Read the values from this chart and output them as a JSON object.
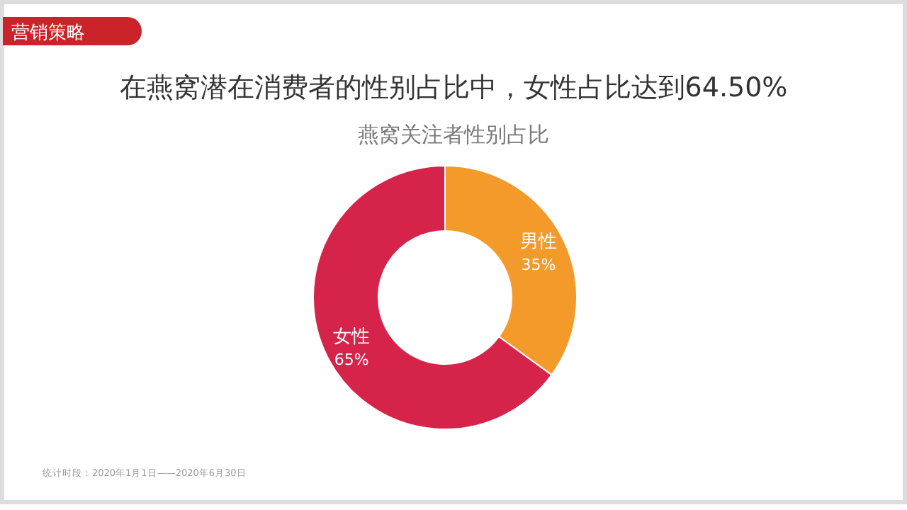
{
  "chart_data": {
    "type": "donut",
    "title": "在燕窝潜在消费者的性别占比中，女性占比达到64.50%",
    "subtitle": "燕窝关注者性别占比",
    "categories": [
      "男性",
      "女性"
    ],
    "values": [
      35,
      65
    ],
    "colors": [
      "#f39a2b",
      "#d6234a"
    ],
    "value_labels": [
      "35%",
      "65%"
    ],
    "annotations": [
      "营销策略",
      "统计时段：2020年1月1日——2020年6月30日"
    ]
  }
}
